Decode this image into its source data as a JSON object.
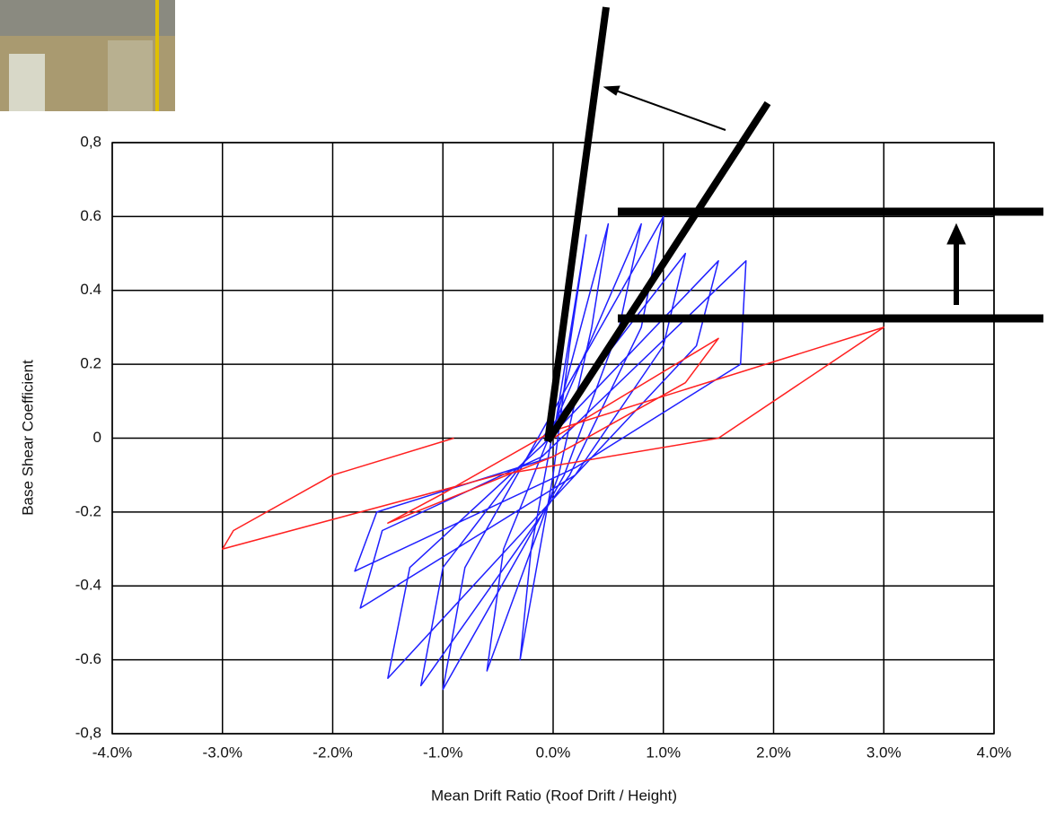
{
  "chart_data": {
    "type": "line",
    "xlabel": "Mean Drift Ratio (Roof Drift / Height)",
    "ylabel": "Base Shear Coefficient",
    "xlim": [
      -4,
      4
    ],
    "xticks": [
      {
        "value": -4,
        "label": "-4.0%"
      },
      {
        "value": -3,
        "label": "-3.0%"
      },
      {
        "value": -2,
        "label": "-2.0%"
      },
      {
        "value": -1,
        "label": "-1.0%"
      },
      {
        "value": 0,
        "label": "0.0%"
      },
      {
        "value": 1,
        "label": "1.0%"
      },
      {
        "value": 2,
        "label": "2.0%"
      },
      {
        "value": 3,
        "label": "3.0%"
      },
      {
        "value": 4,
        "label": "4.0%"
      }
    ],
    "ylim": [
      -0.8,
      0.8
    ],
    "yticks": [
      {
        "value": -0.8,
        "label": "-0,8"
      },
      -0.6,
      -0.4,
      -0.2,
      0,
      0.2,
      0.4,
      0.6,
      {
        "value": 0.8,
        "label": "0,8"
      }
    ],
    "grid": true,
    "series": [
      {
        "color": "#1f1fff",
        "x": [
          0,
          0.3,
          0.15,
          0,
          -0.3,
          -0.2,
          0,
          0.5,
          0.35,
          0.05,
          -0.6,
          -0.45,
          0,
          0.8,
          0.6,
          0.1,
          -1.0,
          -0.8,
          -0.1,
          1.0,
          0.8,
          0.15,
          -1.2,
          -1.0,
          -0.1,
          1.2,
          1.0,
          0.2,
          -1.5,
          -1.3,
          -0.1,
          1.5,
          1.3,
          0.2,
          -1.75,
          -1.55,
          -0.1,
          1.75,
          1.7,
          0.2,
          -1.8,
          -1.6,
          0
        ],
        "values": [
          0,
          0.55,
          0.25,
          -0.1,
          -0.6,
          -0.3,
          0.02,
          0.58,
          0.3,
          -0.1,
          -0.63,
          -0.3,
          0.03,
          0.58,
          0.3,
          -0.1,
          -0.68,
          -0.35,
          0.02,
          0.6,
          0.3,
          -0.1,
          -0.67,
          -0.35,
          0,
          0.5,
          0.25,
          -0.1,
          -0.65,
          -0.35,
          -0.02,
          0.48,
          0.25,
          -0.1,
          -0.46,
          -0.25,
          -0.05,
          0.48,
          0.2,
          -0.08,
          -0.36,
          -0.2,
          -0.05
        ]
      },
      {
        "color": "#ff2020",
        "x": [
          0,
          1.5,
          1.2,
          0,
          -1.5,
          -1.0,
          0,
          3.0,
          2.5,
          1.5,
          -0.5,
          -3.0,
          -2.9,
          -2.0,
          -0.9
        ],
        "values": [
          0,
          0.27,
          0.15,
          -0.05,
          -0.23,
          -0.15,
          0.02,
          0.3,
          0.2,
          0,
          -0.1,
          -0.3,
          -0.25,
          -0.1,
          0
        ]
      }
    ]
  }
}
